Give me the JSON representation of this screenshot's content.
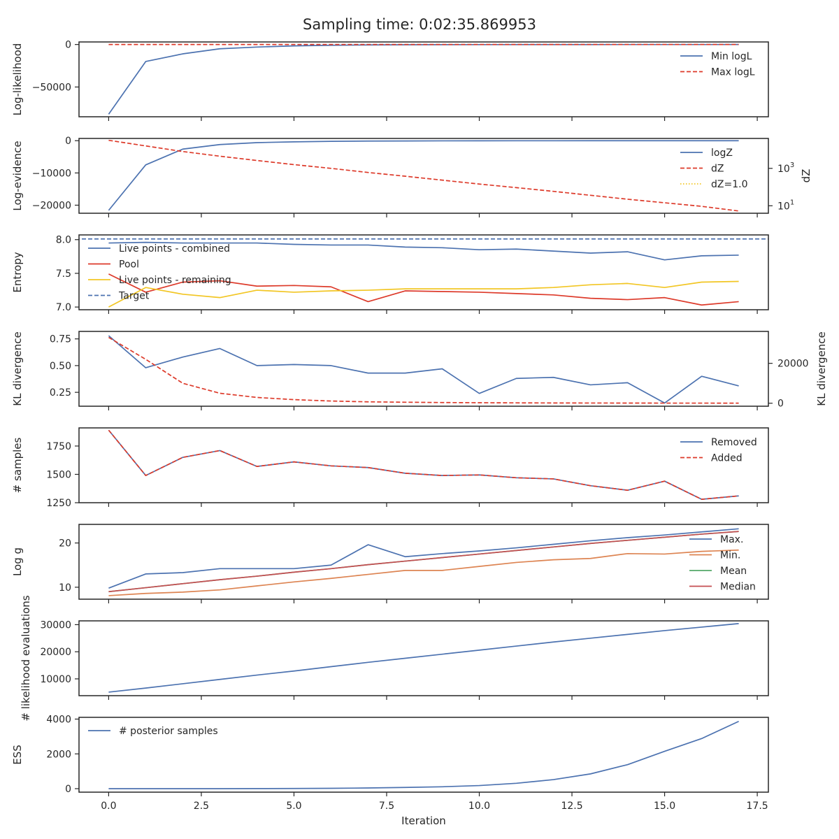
{
  "figure_title": "Sampling time: 0:02:35.869953",
  "xlabel": "Iteration",
  "x_ticks": [
    "0.0",
    "2.5",
    "5.0",
    "7.5",
    "10.0",
    "12.5",
    "15.0",
    "17.5"
  ],
  "colors": {
    "blue": "#4c72b0",
    "red": "#dd3a2a",
    "yellow": "#f2c624",
    "orange": "#dd8452",
    "green": "#55a868",
    "brown": "#c44e52",
    "axis": "#262626"
  },
  "chart_data": [
    {
      "type": "line",
      "ylabel": "Log-likelihood",
      "ylim": [
        -85000,
        3000
      ],
      "y_ticks": [
        0,
        -50000
      ],
      "y_ticklabels": [
        "0",
        "−50000"
      ],
      "legend": "top-right",
      "series": [
        {
          "name": "Min logL",
          "style": "solid",
          "color": "blue",
          "x": [
            0,
            1,
            2,
            3,
            4,
            5,
            6,
            7,
            8,
            9,
            10,
            11,
            12,
            13,
            14,
            15,
            16,
            17
          ],
          "values": [
            -82000,
            -20000,
            -11000,
            -5000,
            -3000,
            -1600,
            -900,
            -500,
            -300,
            -200,
            -150,
            -100,
            -80,
            -60,
            -40,
            -30,
            -20,
            -10
          ]
        },
        {
          "name": "Max logL",
          "style": "dashed",
          "color": "red",
          "x": [
            0,
            17
          ],
          "values": [
            0,
            0
          ]
        }
      ]
    },
    {
      "type": "line",
      "ylabel": "Log-evidence",
      "ylim": [
        -22500,
        700
      ],
      "y_ticks": [
        0,
        -10000,
        -20000
      ],
      "y_ticklabels": [
        "0",
        "−10000",
        "−20000"
      ],
      "ylabel_right": "dZ",
      "right_scale": "log",
      "right_ylim_log10": [
        0.6,
        4.6
      ],
      "right_ticks_log10": [
        3,
        1
      ],
      "right_base": "10",
      "right_exponents": [
        "3",
        "1"
      ],
      "legend": "top-right",
      "series": [
        {
          "name": "logZ",
          "style": "solid",
          "color": "blue",
          "axis": "left",
          "x": [
            0,
            1,
            2,
            3,
            4,
            5,
            6,
            7,
            8,
            9,
            10,
            11,
            12,
            13,
            14,
            15,
            16,
            17
          ],
          "values": [
            -21600,
            -7500,
            -2600,
            -1200,
            -600,
            -350,
            -200,
            -120,
            -80,
            -50,
            -30,
            -20,
            -15,
            -10,
            -8,
            -6,
            -5,
            -4
          ]
        },
        {
          "name": "dZ",
          "style": "dashed",
          "color": "red",
          "axis": "right",
          "log10_values": [
            4.5,
            4.2,
            3.9,
            3.65,
            3.42,
            3.2,
            3.0,
            2.78,
            2.58,
            2.37,
            2.16,
            1.97,
            1.77,
            1.56,
            1.35,
            1.16,
            0.97,
            0.72
          ]
        },
        {
          "name": "dZ=1.0",
          "style": "dotted",
          "color": "yellow",
          "axis": "right",
          "log10_values": [
            0,
            0
          ]
        }
      ]
    },
    {
      "type": "line",
      "ylabel": "Entropy",
      "ylim": [
        6.96,
        8.07
      ],
      "y_ticks": [
        7.0,
        7.5,
        8.0
      ],
      "y_ticklabels": [
        "7.0",
        "7.5",
        "8.0"
      ],
      "legend": "top-left",
      "series": [
        {
          "name": "Live points - combined",
          "style": "solid",
          "color": "blue",
          "x": [
            0,
            1,
            2,
            3,
            4,
            5,
            6,
            7,
            8,
            9,
            10,
            11,
            12,
            13,
            14,
            15,
            16,
            17
          ],
          "values": [
            7.95,
            7.96,
            7.95,
            7.95,
            7.95,
            7.93,
            7.92,
            7.92,
            7.89,
            7.88,
            7.85,
            7.86,
            7.83,
            7.8,
            7.82,
            7.7,
            7.76,
            7.77
          ]
        },
        {
          "name": "Pool",
          "style": "solid",
          "color": "red",
          "x": [
            0,
            1,
            2,
            3,
            4,
            5,
            6,
            7,
            8,
            9,
            10,
            11,
            12,
            13,
            14,
            15,
            16,
            17
          ],
          "values": [
            7.49,
            7.22,
            7.37,
            7.39,
            7.31,
            7.32,
            7.3,
            7.08,
            7.24,
            7.23,
            7.22,
            7.2,
            7.18,
            7.13,
            7.11,
            7.14,
            7.03,
            7.08
          ]
        },
        {
          "name": "Live points - remaining",
          "style": "solid",
          "color": "yellow",
          "x": [
            0,
            1,
            2,
            3,
            4,
            5,
            6,
            7,
            8,
            9,
            10,
            11,
            12,
            13,
            14,
            15,
            16,
            17
          ],
          "values": [
            7.0,
            7.29,
            7.19,
            7.14,
            7.25,
            7.22,
            7.24,
            7.25,
            7.27,
            7.27,
            7.27,
            7.27,
            7.29,
            7.33,
            7.35,
            7.29,
            7.37,
            7.38
          ]
        },
        {
          "name": "Target",
          "style": "dashed",
          "color": "blue",
          "values": [
            8.01,
            8.01
          ]
        }
      ]
    },
    {
      "type": "line",
      "ylabel": "KL divergence",
      "ylim": [
        0.12,
        0.82
      ],
      "y_ticks": [
        0.25,
        0.5,
        0.75
      ],
      "y_ticklabels": [
        "0.25",
        "0.50",
        "0.75"
      ],
      "ylabel_right": "KL divergence",
      "right_ylim": [
        -1500,
        36000
      ],
      "right_ticks": [
        0,
        20000
      ],
      "right_ticklabels": [
        "0",
        "20000"
      ],
      "series": [
        {
          "name": "",
          "style": "solid",
          "color": "blue",
          "axis": "left",
          "x": [
            0,
            1,
            2,
            3,
            4,
            5,
            6,
            7,
            8,
            9,
            10,
            11,
            12,
            13,
            14,
            15,
            16,
            17
          ],
          "values": [
            0.78,
            0.48,
            0.58,
            0.66,
            0.5,
            0.51,
            0.5,
            0.43,
            0.43,
            0.47,
            0.24,
            0.38,
            0.39,
            0.32,
            0.34,
            0.15,
            0.4,
            0.31
          ]
        },
        {
          "name": "",
          "style": "dashed",
          "color": "red",
          "axis": "right",
          "x": [
            0,
            1,
            2,
            3,
            4,
            5,
            6,
            7,
            8,
            9,
            10,
            11,
            12,
            13,
            14,
            15,
            16,
            17
          ],
          "values": [
            33000,
            22000,
            10000,
            5000,
            2900,
            1800,
            1100,
            700,
            500,
            350,
            250,
            180,
            130,
            100,
            80,
            60,
            50,
            40
          ]
        }
      ]
    },
    {
      "type": "line",
      "ylabel": "# samples",
      "ylim": [
        1250,
        1910
      ],
      "y_ticks": [
        1250,
        1500,
        1750
      ],
      "y_ticklabels": [
        "1250",
        "1500",
        "1750"
      ],
      "legend": "top-right",
      "series": [
        {
          "name": "Removed",
          "style": "solid",
          "color": "blue",
          "x": [
            0,
            1,
            2,
            3,
            4,
            5,
            6,
            7,
            8,
            9,
            10,
            11,
            12,
            13,
            14,
            15,
            16,
            17
          ],
          "values": [
            1890,
            1490,
            1650,
            1710,
            1570,
            1610,
            1575,
            1560,
            1510,
            1490,
            1495,
            1470,
            1460,
            1400,
            1360,
            1440,
            1280,
            1310
          ]
        },
        {
          "name": "Added",
          "style": "dashed",
          "color": "red",
          "x": [
            0,
            1,
            2,
            3,
            4,
            5,
            6,
            7,
            8,
            9,
            10,
            11,
            12,
            13,
            14,
            15,
            16,
            17
          ],
          "values": [
            1890,
            1490,
            1650,
            1710,
            1570,
            1610,
            1575,
            1560,
            1510,
            1490,
            1495,
            1470,
            1460,
            1400,
            1360,
            1440,
            1280,
            1310
          ]
        }
      ]
    },
    {
      "type": "line",
      "ylabel": "Log g",
      "ylim": [
        7.3,
        24.2
      ],
      "y_ticks": [
        10,
        20
      ],
      "y_ticklabels": [
        "10",
        "20"
      ],
      "legend": "bottom-right",
      "series": [
        {
          "name": "Max.",
          "style": "solid",
          "color": "blue",
          "x": [
            0,
            1,
            2,
            3,
            4,
            5,
            6,
            7,
            8,
            9,
            10,
            11,
            12,
            13,
            14,
            15,
            16,
            17
          ],
          "values": [
            9.8,
            13.0,
            13.3,
            14.2,
            14.2,
            14.2,
            15.0,
            19.6,
            16.9,
            17.6,
            18.2,
            18.9,
            19.7,
            20.5,
            21.2,
            21.8,
            22.5,
            23.2
          ]
        },
        {
          "name": "Min.",
          "style": "solid",
          "color": "orange",
          "x": [
            0,
            1,
            2,
            3,
            4,
            5,
            6,
            7,
            8,
            9,
            10,
            11,
            12,
            13,
            14,
            15,
            16,
            17
          ],
          "values": [
            8.1,
            8.6,
            8.9,
            9.4,
            10.3,
            11.2,
            12.0,
            12.9,
            13.8,
            13.8,
            14.7,
            15.6,
            16.2,
            16.5,
            17.6,
            17.5,
            18.1,
            18.4
          ]
        },
        {
          "name": "Mean",
          "style": "solid",
          "color": "green",
          "x": [
            0,
            1,
            2,
            3,
            4,
            5,
            6,
            7,
            8,
            9,
            10,
            11,
            12,
            13,
            14,
            15,
            16,
            17
          ],
          "values": [
            9.0,
            9.9,
            10.8,
            11.7,
            12.5,
            13.4,
            14.2,
            15.1,
            15.9,
            16.7,
            17.5,
            18.3,
            19.1,
            19.9,
            20.6,
            21.3,
            22.0,
            22.6
          ]
        },
        {
          "name": "Median",
          "style": "solid",
          "color": "brown",
          "x": [
            0,
            1,
            2,
            3,
            4,
            5,
            6,
            7,
            8,
            9,
            10,
            11,
            12,
            13,
            14,
            15,
            16,
            17
          ],
          "values": [
            9.0,
            9.9,
            10.8,
            11.7,
            12.5,
            13.4,
            14.2,
            15.1,
            15.9,
            16.7,
            17.5,
            18.3,
            19.1,
            19.9,
            20.6,
            21.3,
            22.0,
            22.6
          ]
        }
      ]
    },
    {
      "type": "line",
      "ylabel": "# likelihood evaluations",
      "ylim": [
        3800,
        31400
      ],
      "y_ticks": [
        10000,
        20000,
        30000
      ],
      "y_ticklabels": [
        "10000",
        "20000",
        "30000"
      ],
      "series": [
        {
          "name": "",
          "style": "solid",
          "color": "blue",
          "x": [
            0,
            1,
            2,
            3,
            4,
            5,
            6,
            7,
            8,
            9,
            10,
            11,
            12,
            13,
            14,
            15,
            16,
            17
          ],
          "values": [
            5100,
            6600,
            8200,
            9800,
            11400,
            12900,
            14500,
            16100,
            17600,
            19100,
            20600,
            22100,
            23600,
            25000,
            26400,
            27800,
            29100,
            30400
          ]
        }
      ]
    },
    {
      "type": "line",
      "ylabel": "ESS",
      "ylim": [
        -200,
        4100
      ],
      "y_ticks": [
        0,
        2000,
        4000
      ],
      "y_ticklabels": [
        "0",
        "2000",
        "4000"
      ],
      "legend": "top-left",
      "series": [
        {
          "name": "# posterior samples",
          "style": "solid",
          "color": "blue",
          "x": [
            0,
            1,
            2,
            3,
            4,
            5,
            6,
            7,
            8,
            9,
            10,
            11,
            12,
            13,
            14,
            15,
            16,
            17
          ],
          "values": [
            0,
            0,
            0,
            2,
            5,
            10,
            20,
            40,
            70,
            110,
            180,
            310,
            520,
            850,
            1380,
            2150,
            2880,
            3870
          ]
        }
      ]
    }
  ]
}
